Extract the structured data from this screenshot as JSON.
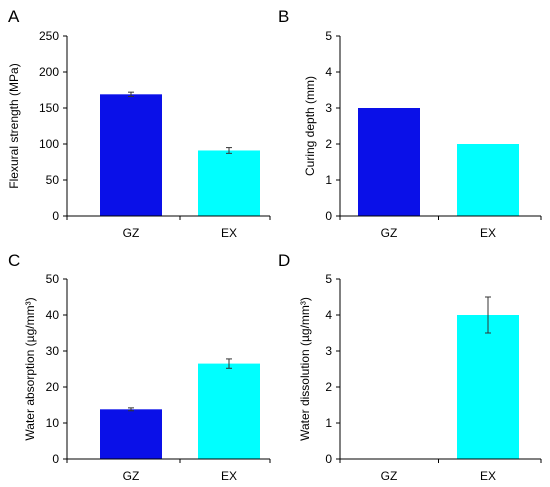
{
  "chart_data": [
    {
      "panel": "A",
      "type": "bar",
      "categories": [
        "GZ",
        "EX"
      ],
      "values": [
        169,
        91
      ],
      "errors": [
        3,
        4
      ],
      "colors": [
        "#0a10e8",
        "#00ffff"
      ],
      "ylabel": "Flexural strength (MPa)",
      "ylim": [
        0,
        250
      ],
      "yticks": [
        0,
        50,
        100,
        150,
        200,
        250
      ],
      "grid": false
    },
    {
      "panel": "B",
      "type": "bar",
      "categories": [
        "GZ",
        "EX"
      ],
      "values": [
        3,
        2
      ],
      "errors": [
        0,
        0
      ],
      "colors": [
        "#0a10e8",
        "#00ffff"
      ],
      "ylabel": "Curing depth (mm)",
      "ylim": [
        0,
        5
      ],
      "yticks": [
        0,
        1,
        2,
        3,
        4,
        5
      ],
      "grid": false
    },
    {
      "panel": "C",
      "type": "bar",
      "categories": [
        "GZ",
        "EX"
      ],
      "values": [
        13.8,
        26.5
      ],
      "errors": [
        0.4,
        1.3
      ],
      "colors": [
        "#0a10e8",
        "#00ffff"
      ],
      "ylabel": "Water absorption (µg/mm³)",
      "ylim": [
        0,
        50
      ],
      "yticks": [
        0,
        10,
        20,
        30,
        40,
        50
      ],
      "grid": false
    },
    {
      "panel": "D",
      "type": "bar",
      "categories": [
        "GZ",
        "EX"
      ],
      "values": [
        0,
        4
      ],
      "errors": [
        0,
        0.5
      ],
      "colors": [
        "#0a10e8",
        "#00ffff"
      ],
      "ylabel": "Water dissolution (µg/mm³)",
      "ylim": [
        0,
        5
      ],
      "yticks": [
        0,
        1,
        2,
        3,
        4,
        5
      ],
      "grid": false
    }
  ]
}
